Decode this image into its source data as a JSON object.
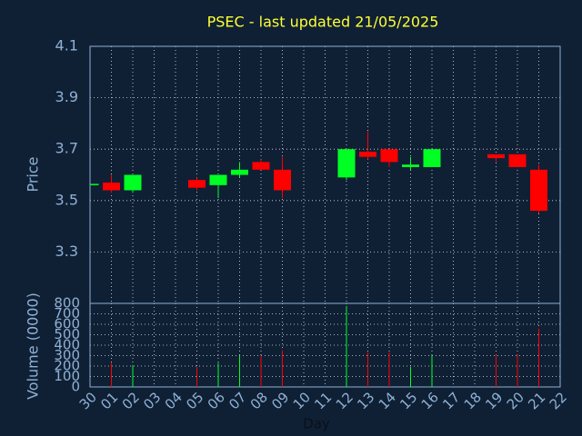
{
  "chart_data": {
    "type": "candlestick",
    "title": "PSEC - last updated 21/05/2025",
    "ylabel": "Price",
    "volume_label": "Volume (0000)",
    "xlabel": "Day",
    "categories": [
      "30",
      "01",
      "02",
      "03",
      "04",
      "05",
      "06",
      "07",
      "08",
      "09",
      "10",
      "11",
      "12",
      "13",
      "14",
      "15",
      "16",
      "17",
      "18",
      "19",
      "20",
      "21",
      "22"
    ],
    "open": [
      3.56,
      3.57,
      3.54,
      null,
      null,
      3.58,
      3.56,
      3.6,
      3.65,
      3.62,
      null,
      null,
      3.59,
      3.69,
      3.7,
      3.63,
      3.63,
      null,
      null,
      3.68,
      3.68,
      3.62,
      null
    ],
    "high": [
      3.565,
      3.6,
      3.6,
      null,
      null,
      3.59,
      3.6,
      3.65,
      3.66,
      3.67,
      null,
      null,
      3.7,
      3.77,
      3.7,
      3.67,
      3.7,
      null,
      null,
      3.68,
      3.68,
      3.64,
      null
    ],
    "low": [
      3.56,
      3.53,
      3.53,
      null,
      null,
      3.54,
      3.51,
      3.59,
      3.62,
      3.51,
      null,
      null,
      3.58,
      3.66,
      3.63,
      3.62,
      3.63,
      null,
      null,
      3.65,
      3.63,
      3.45,
      null
    ],
    "close": [
      3.565,
      3.54,
      3.6,
      null,
      null,
      3.55,
      3.6,
      3.62,
      3.62,
      3.54,
      null,
      null,
      3.7,
      3.67,
      3.65,
      3.64,
      3.7,
      null,
      null,
      3.665,
      3.63,
      3.46,
      null
    ],
    "volume": [
      null,
      230,
      210,
      null,
      null,
      190,
      230,
      300,
      300,
      350,
      null,
      null,
      775,
      330,
      330,
      190,
      310,
      null,
      null,
      310,
      310,
      560,
      null
    ],
    "ylim": [
      3.1,
      4.1
    ],
    "yticks": [
      3.3,
      3.5,
      3.7,
      3.9,
      4.1
    ],
    "volume_ylim": [
      0,
      800
    ],
    "volume_yticks": [
      0,
      100,
      200,
      300,
      400,
      500,
      600,
      700,
      800
    ],
    "up_color": "#00ff22",
    "down_color": "#ff0000",
    "title_color": "#ffff33",
    "grid": true
  }
}
